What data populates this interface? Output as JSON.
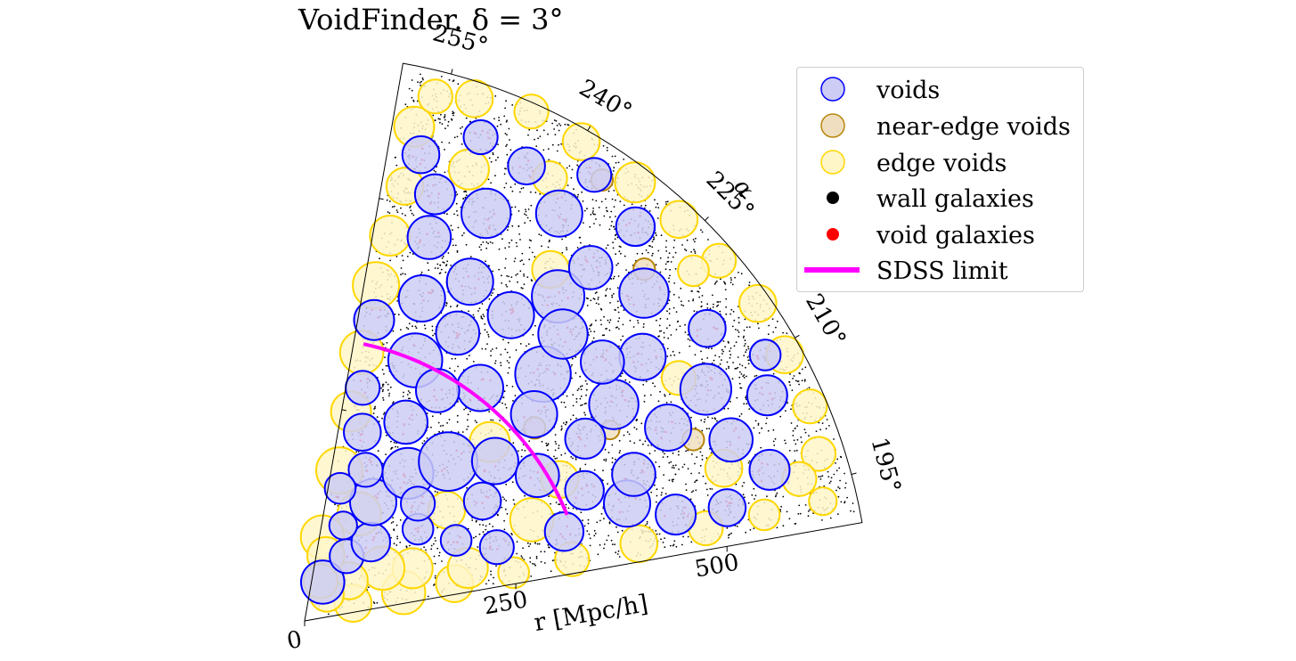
{
  "colors": {
    "void_fill": "#ccccf5",
    "void_edge": "#0000ff",
    "near_edge_fill": "#efdfc0",
    "near_edge_edge": "#b8860b",
    "edge_fill": "#fff6c8",
    "edge_edge": "#ffd700",
    "wall_galaxy": "#000000",
    "void_galaxy": "#ff0000",
    "sdss_limit": "#ff00ff"
  },
  "chart_data": {
    "type": "scatter",
    "projection": "polar-wedge",
    "title": "VoidFinder.  δ = 3°",
    "theta_label": "α",
    "r_label": "r [Mpc/h]",
    "theta_range_deg": [
      190,
      260
    ],
    "r_range": [
      0,
      660
    ],
    "theta_ticks": [
      "195°",
      "210°",
      "225°",
      "240°",
      "255°"
    ],
    "theta_tick_values": [
      195,
      210,
      225,
      240,
      255
    ],
    "r_ticks": [
      "0",
      "250",
      "500"
    ],
    "r_tick_values": [
      0,
      250,
      500
    ],
    "sdss_limit_r": 330,
    "legend": [
      {
        "name": "voids",
        "marker": "circle-void"
      },
      {
        "name": "near-edge voids",
        "marker": "circle-near"
      },
      {
        "name": "edge voids",
        "marker": "circle-edge"
      },
      {
        "name": "wall galaxies",
        "marker": "dot-wall"
      },
      {
        "name": "void galaxies",
        "marker": "dot-void"
      },
      {
        "name": "SDSS limit",
        "marker": "line-sdss"
      }
    ],
    "series": [
      {
        "name": "voids",
        "points": [
          [
            245,
            50,
            28
          ],
          [
            237,
            90,
            22
          ],
          [
            230,
            120,
            25
          ],
          [
            240,
            160,
            30
          ],
          [
            235,
            210,
            33
          ],
          [
            228,
            250,
            38
          ],
          [
            220,
            290,
            30
          ],
          [
            212,
            320,
            28
          ],
          [
            205,
            360,
            25
          ],
          [
            200,
            400,
            30
          ],
          [
            196,
            450,
            26
          ],
          [
            243,
            260,
            28
          ],
          [
            247,
            330,
            35
          ],
          [
            250,
            400,
            30
          ],
          [
            252,
            470,
            28
          ],
          [
            246,
            520,
            32
          ],
          [
            238,
            560,
            30
          ],
          [
            232,
            480,
            34
          ],
          [
            226,
            400,
            36
          ],
          [
            222,
            360,
            30
          ],
          [
            215,
            440,
            32
          ],
          [
            208,
            480,
            30
          ],
          [
            203,
            540,
            28
          ],
          [
            198,
            570,
            26
          ],
          [
            210,
            540,
            33
          ],
          [
            218,
            500,
            30
          ],
          [
            224,
            550,
            32
          ],
          [
            230,
            600,
            25
          ],
          [
            236,
            430,
            30
          ],
          [
            242,
            380,
            28
          ],
          [
            248,
            190,
            22
          ],
          [
            253,
            230,
            24
          ],
          [
            256,
            280,
            22
          ],
          [
            257,
            360,
            26
          ],
          [
            256,
            560,
            24
          ],
          [
            250,
            600,
            22
          ],
          [
            214,
            250,
            24
          ],
          [
            208,
            200,
            20
          ],
          [
            201,
            240,
            22
          ],
          [
            199,
            320,
            25
          ],
          [
            204,
            420,
            28
          ],
          [
            213,
            390,
            26
          ],
          [
            219,
            170,
            20
          ],
          [
            226,
            190,
            22
          ],
          [
            233,
            340,
            30
          ],
          [
            240,
            310,
            28
          ],
          [
            244,
            440,
            30
          ],
          [
            228,
            450,
            32
          ],
          [
            221,
            460,
            28
          ],
          [
            216,
            580,
            24
          ],
          [
            206,
            600,
            26
          ],
          [
            195,
            510,
            24
          ],
          [
            210,
            620,
            20
          ],
          [
            231,
            530,
            28
          ],
          [
            237,
            620,
            22
          ],
          [
            244,
            590,
            24
          ],
          [
            253,
            520,
            26
          ],
          [
            255,
            160,
            20
          ],
          [
            248,
            120,
            18
          ]
        ]
      },
      {
        "name": "near-edge voids",
        "points": [
          [
            220,
            350,
            14
          ],
          [
            236,
            620,
            14
          ],
          [
            226,
            570,
            14
          ],
          [
            205,
            500,
            14
          ],
          [
            212,
            420,
            12
          ]
        ]
      },
      {
        "name": "edge voids",
        "points": [
          [
            258,
            100,
            28
          ],
          [
            257,
            180,
            30
          ],
          [
            257.5,
            250,
            26
          ],
          [
            258,
            320,
            28
          ],
          [
            258,
            400,
            30
          ],
          [
            257.5,
            460,
            26
          ],
          [
            257,
            520,
            24
          ],
          [
            257.5,
            590,
            26
          ],
          [
            256,
            630,
            22
          ],
          [
            252,
            640,
            24
          ],
          [
            246,
            650,
            22
          ],
          [
            240,
            645,
            24
          ],
          [
            233,
            640,
            26
          ],
          [
            227,
            640,
            24
          ],
          [
            221,
            640,
            22
          ],
          [
            215,
            645,
            24
          ],
          [
            209,
            640,
            24
          ],
          [
            203,
            640,
            22
          ],
          [
            198,
            630,
            22
          ],
          [
            193,
            620,
            18
          ],
          [
            193,
            550,
            20
          ],
          [
            193,
            480,
            22
          ],
          [
            193,
            400,
            24
          ],
          [
            193,
            320,
            22
          ],
          [
            193,
            250,
            20
          ],
          [
            194,
            180,
            24
          ],
          [
            196,
            120,
            28
          ],
          [
            200,
            60,
            24
          ],
          [
            206,
            140,
            26
          ],
          [
            214,
            110,
            28
          ],
          [
            222,
            70,
            24
          ],
          [
            230,
            40,
            22
          ],
          [
            252,
            80,
            24
          ],
          [
            248,
            50,
            22
          ],
          [
            243,
            140,
            28
          ],
          [
            250,
            560,
            26
          ],
          [
            241,
            590,
            22
          ],
          [
            235,
            500,
            24
          ],
          [
            222,
            610,
            20
          ],
          [
            213,
            520,
            22
          ],
          [
            200,
            520,
            24
          ],
          [
            196,
            600,
            22
          ],
          [
            218,
            210,
            24
          ],
          [
            224,
            300,
            26
          ],
          [
            204,
            290,
            28
          ],
          [
            198,
            200,
            26
          ],
          [
            209,
            340,
            24
          ]
        ]
      }
    ]
  }
}
